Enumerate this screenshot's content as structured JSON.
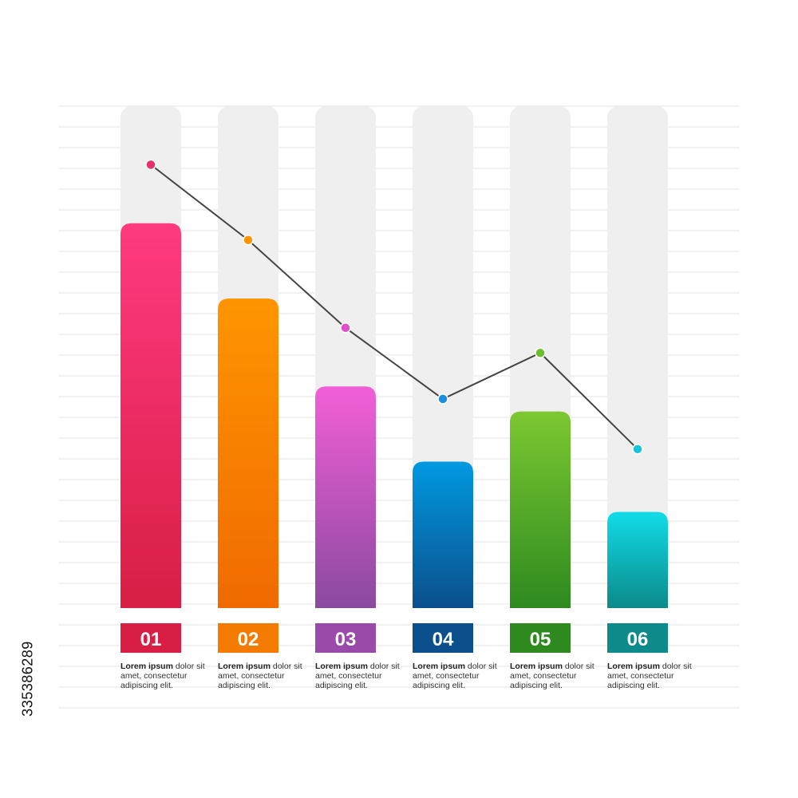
{
  "chart_data": {
    "type": "bar",
    "categories": [
      "01",
      "02",
      "03",
      "04",
      "05",
      "06"
    ],
    "values": [
      92,
      74,
      53,
      35,
      47,
      23
    ],
    "line": [
      106,
      88,
      67,
      50,
      61,
      38
    ],
    "ylim": [
      0,
      120
    ],
    "grid": true,
    "colors": [
      {
        "top": "#ff3a80",
        "bottom": "#d81e44",
        "label": "#d81e44",
        "dot": "#e8306a"
      },
      {
        "top": "#ff9500",
        "bottom": "#f06a00",
        "label": "#f47a00",
        "dot": "#ff9500"
      },
      {
        "top": "#f25fd8",
        "bottom": "#8a4aa0",
        "label": "#9a4aa8",
        "dot": "#e14fc8"
      },
      {
        "top": "#0099e0",
        "bottom": "#0b4f8c",
        "label": "#0b4f8c",
        "dot": "#1a8fe0"
      },
      {
        "top": "#7cc831",
        "bottom": "#2e8a1f",
        "label": "#2e8a1f",
        "dot": "#6cbf2a"
      },
      {
        "top": "#11dce8",
        "bottom": "#0b8a8a",
        "label": "#0f8a8a",
        "dot": "#16c4dc"
      }
    ],
    "captions": [
      {
        "bold": "Lorem ipsum",
        "text": "dolor sit amet, consectetur adipiscing elit."
      },
      {
        "bold": "Lorem ipsum",
        "text": "dolor sit amet, consectetur adipiscing elit."
      },
      {
        "bold": "Lorem ipsum",
        "text": "dolor sit amet, consectetur adipiscing elit."
      },
      {
        "bold": "Lorem ipsum",
        "text": "dolor sit amet, consectetur adipiscing elit."
      },
      {
        "bold": "Lorem ipsum",
        "text": "dolor sit amet, consectetur adipiscing elit."
      },
      {
        "bold": "Lorem ipsum",
        "text": "dolor sit amet, consectetur adipiscing elit."
      }
    ]
  },
  "stock_id": "335386289"
}
